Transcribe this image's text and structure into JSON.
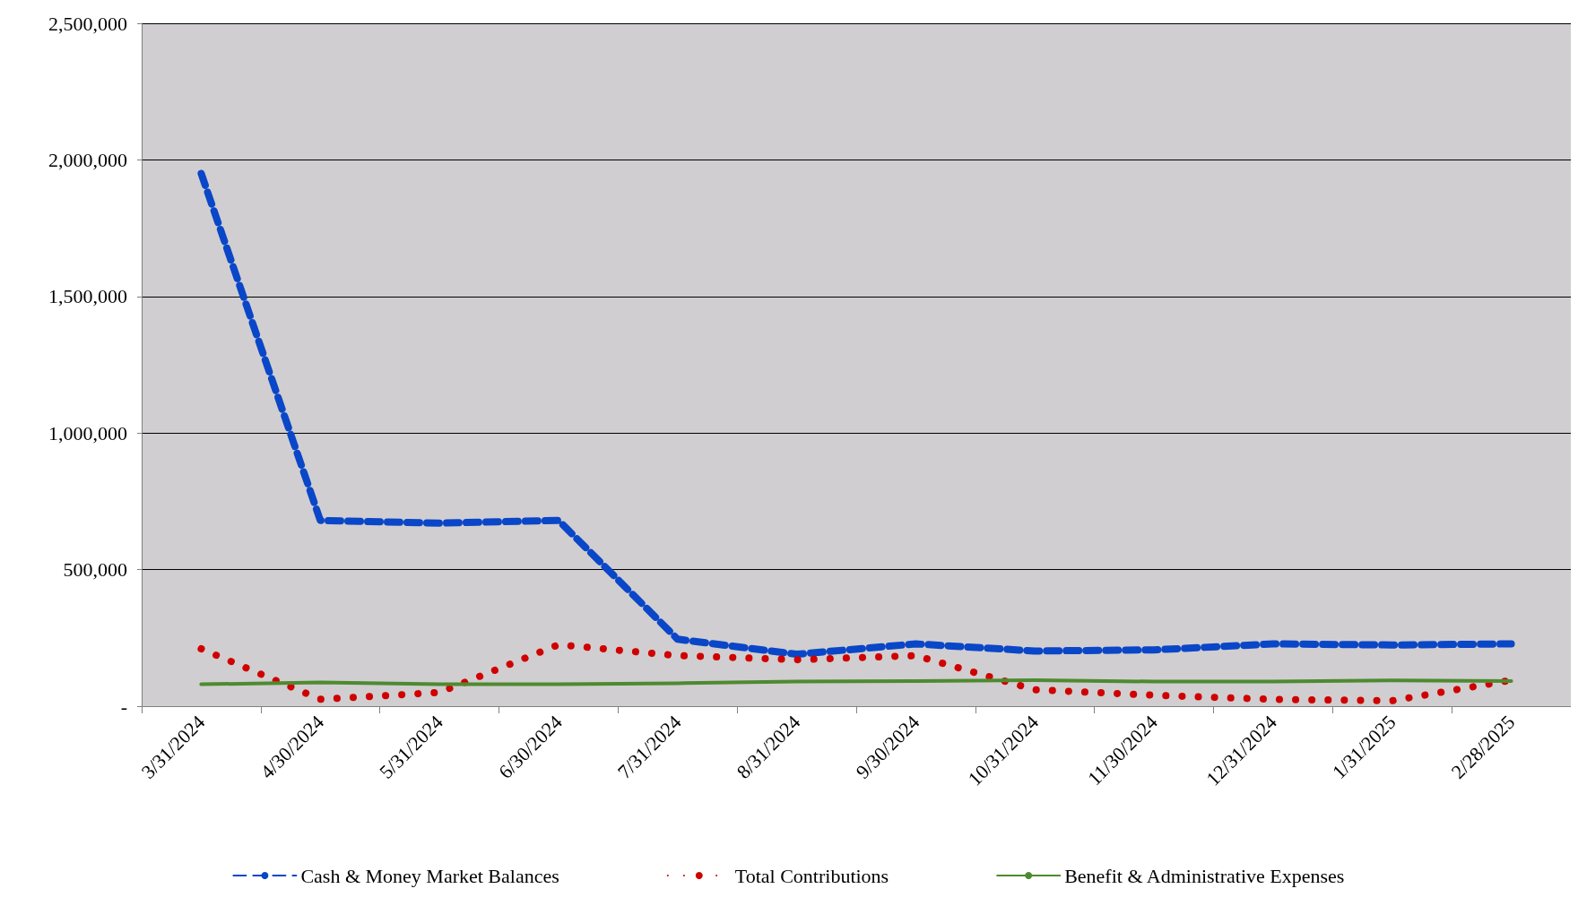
{
  "chart_data": {
    "type": "line",
    "categories": [
      "3/31/2024",
      "4/30/2024",
      "5/31/2024",
      "6/30/2024",
      "7/31/2024",
      "8/31/2024",
      "9/30/2024",
      "10/31/2024",
      "11/30/2024",
      "12/31/2024",
      "1/31/2025",
      "2/28/2025"
    ],
    "series": [
      {
        "name": "Cash & Money Market Balances",
        "color": "#0a46c8",
        "line_style": "dashed",
        "values": [
          1950000,
          680000,
          670000,
          680000,
          245000,
          190000,
          228000,
          202000,
          206000,
          228000,
          224000,
          228000
        ]
      },
      {
        "name": "Total Contributions",
        "color": "#d00000",
        "line_style": "dotted",
        "values": [
          210000,
          25000,
          50000,
          225000,
          185000,
          170000,
          185000,
          60000,
          40000,
          25000,
          20000,
          95000
        ]
      },
      {
        "name": "Benefit & Administrative Expenses",
        "color": "#4e8a30",
        "line_style": "solid",
        "values": [
          80000,
          87000,
          80000,
          80000,
          84000,
          90000,
          92000,
          95000,
          90000,
          90000,
          94000,
          92000
        ]
      }
    ],
    "ylim": [
      0,
      2500000
    ],
    "yticks": [
      {
        "value": 0,
        "label": "-"
      },
      {
        "value": 500000,
        "label": "500,000"
      },
      {
        "value": 1000000,
        "label": "1,000,000"
      },
      {
        "value": 1500000,
        "label": "1,500,000"
      },
      {
        "value": 2000000,
        "label": "2,000,000"
      },
      {
        "value": 2500000,
        "label": "2,500,000"
      }
    ],
    "grid": "y",
    "legend": "bottom",
    "marker": "none"
  }
}
